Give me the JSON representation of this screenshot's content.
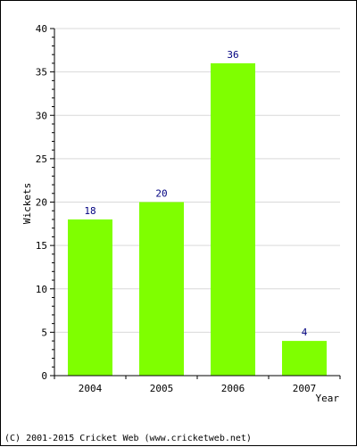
{
  "chart_data": {
    "type": "bar",
    "categories": [
      "2004",
      "2005",
      "2006",
      "2007"
    ],
    "values": [
      18,
      20,
      36,
      4
    ],
    "data_labels": [
      "18",
      "20",
      "36",
      "4"
    ],
    "xlabel": "Year",
    "ylabel": "Wickets",
    "ylim": [
      0,
      40
    ],
    "yticks": [
      0,
      5,
      10,
      15,
      20,
      25,
      30,
      35,
      40
    ],
    "grid": true,
    "legend": "none",
    "colors": {
      "bar": "#7FFF00",
      "grid": "#d9d9d9",
      "axis": "#000000",
      "data_label": "#000080"
    }
  },
  "footer": {
    "credit": "(C) 2001-2015 Cricket Web (www.cricketweb.net)"
  }
}
